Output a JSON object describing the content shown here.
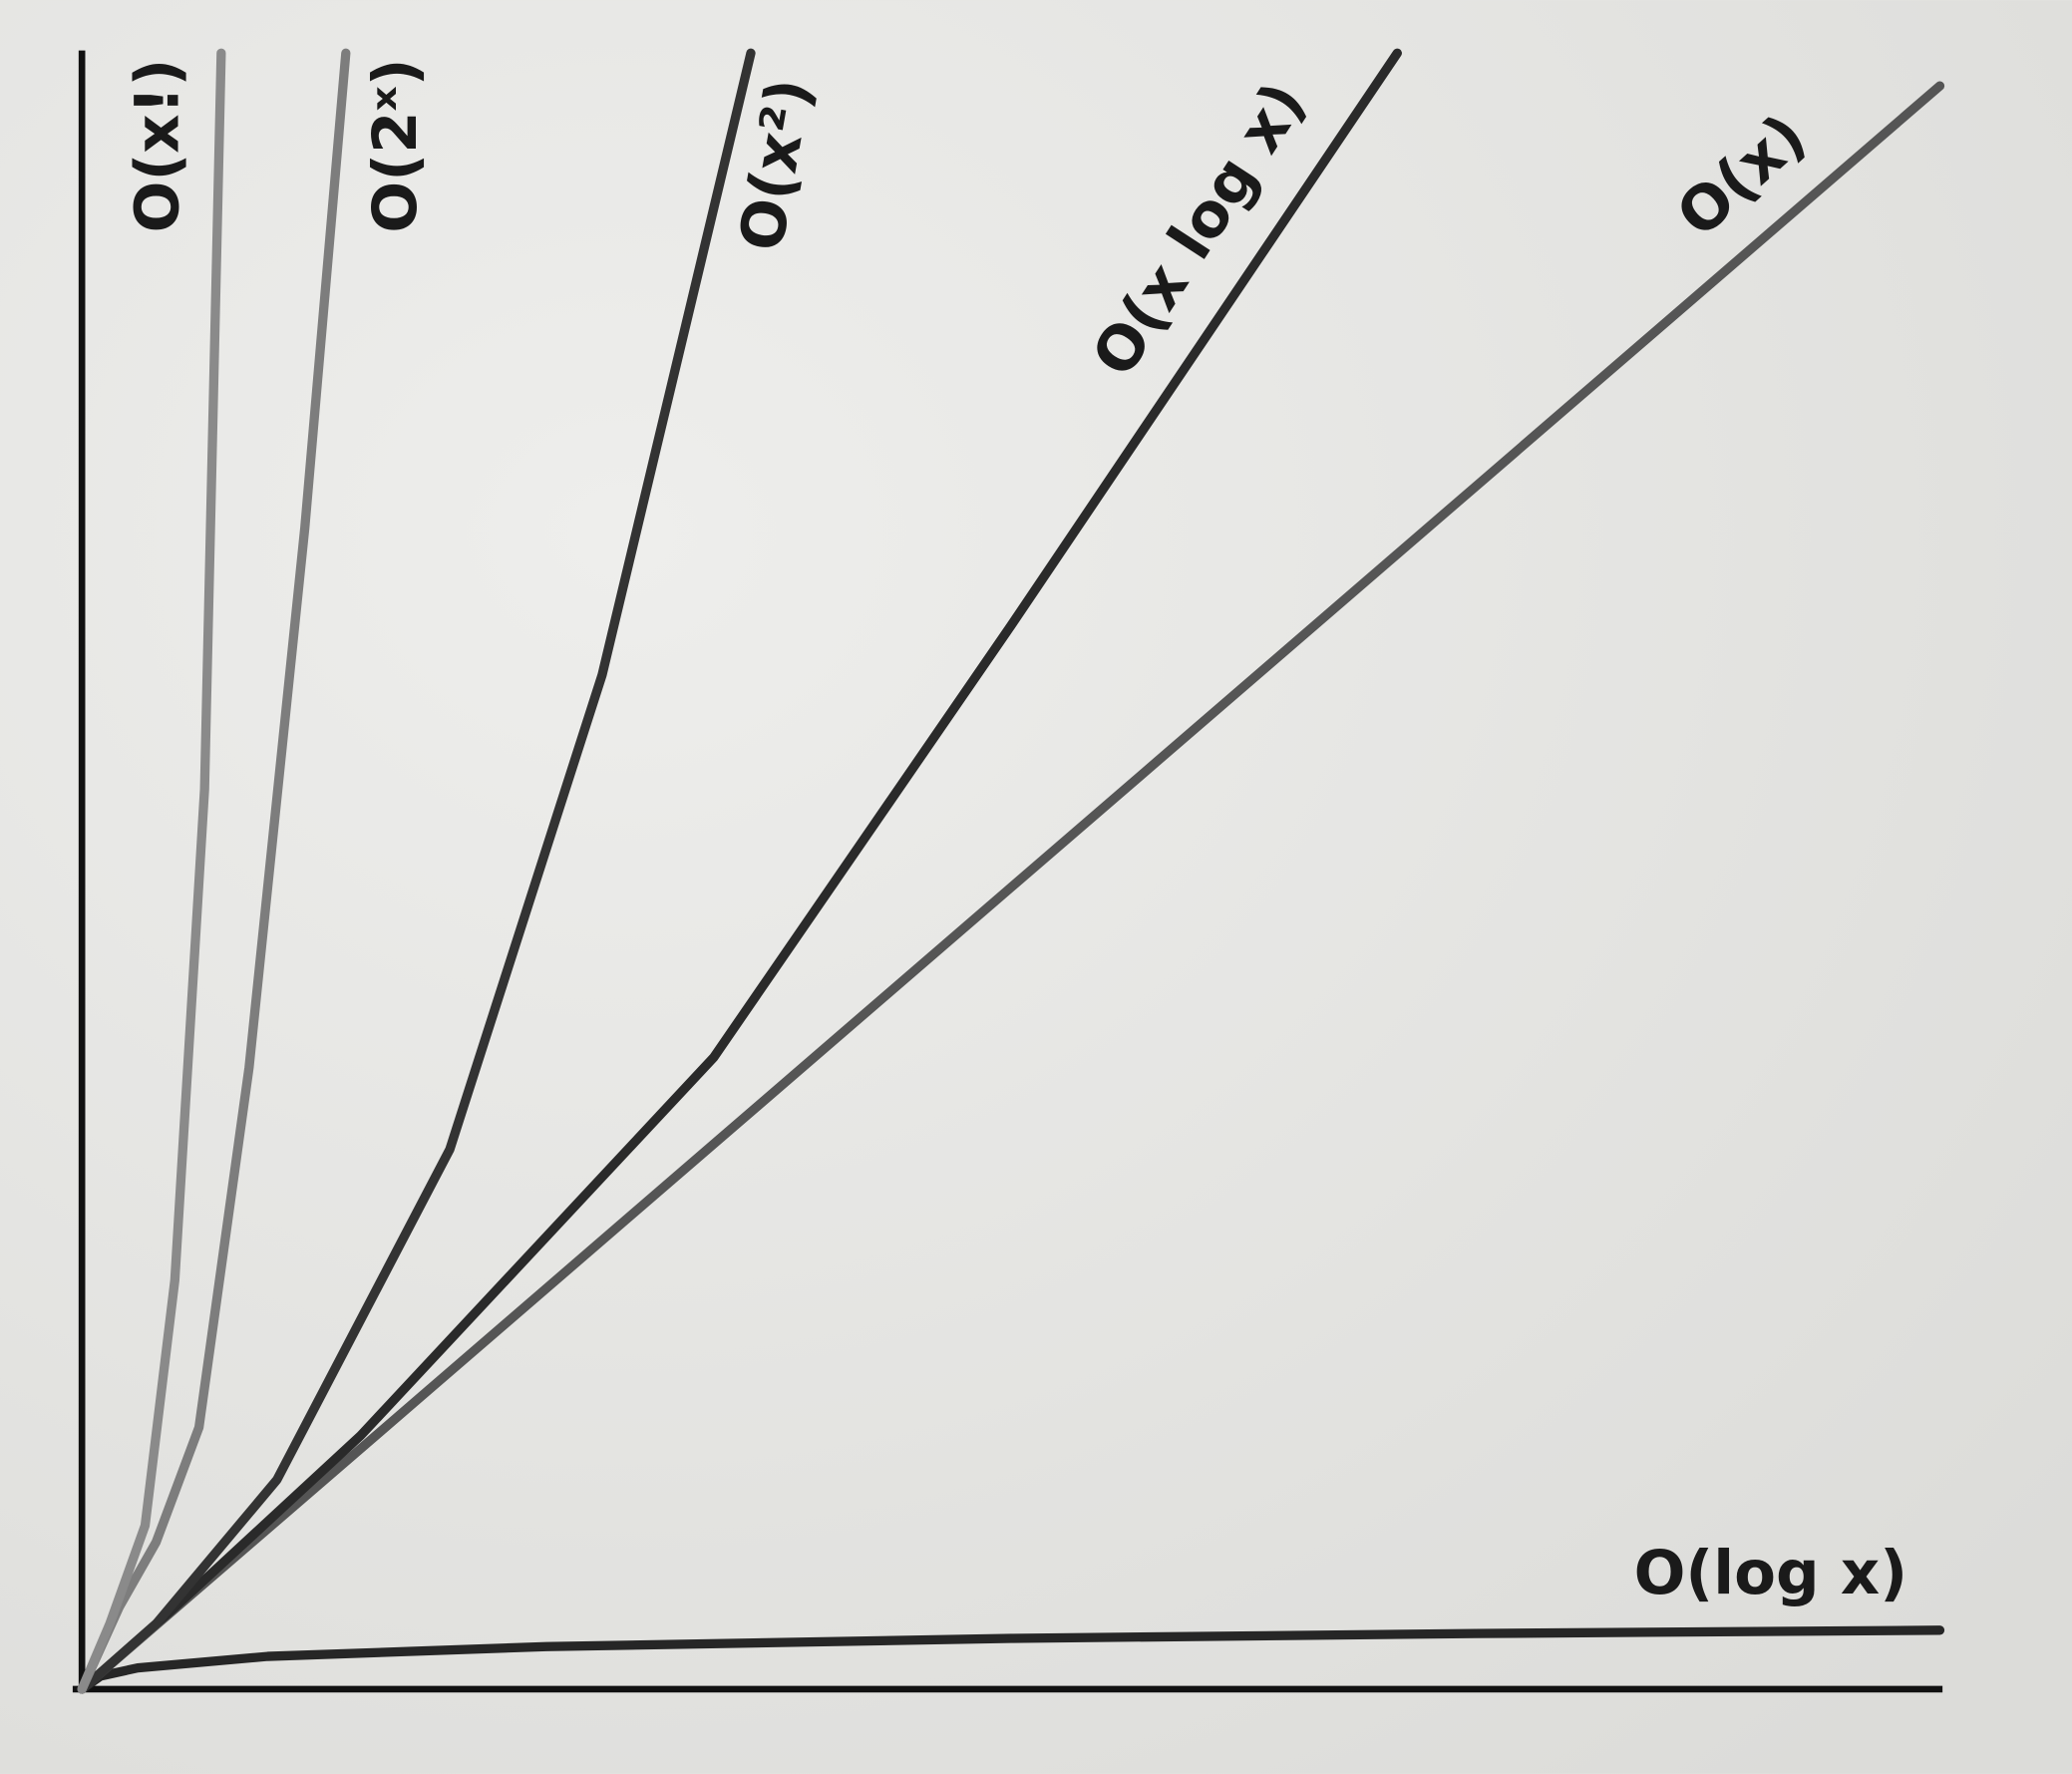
{
  "chart_data": {
    "type": "line",
    "xlim": [
      0,
      100
    ],
    "ylim": [
      0,
      100
    ],
    "series": [
      {
        "name": "O(log x)",
        "color": "#262626",
        "x": [
          0,
          1,
          3,
          10,
          25,
          50,
          75,
          100
        ],
        "values": [
          0,
          0.8,
          1.3,
          2,
          2.6,
          3.1,
          3.4,
          3.6
        ]
      },
      {
        "name": "O(x)",
        "color": "#555555",
        "x": [
          0,
          25,
          50,
          75,
          100
        ],
        "values": [
          0,
          24.5,
          49,
          73.5,
          98
        ]
      },
      {
        "name": "O(x log x)",
        "color": "#2a2a2a",
        "x": [
          0,
          5,
          15,
          34,
          50,
          70.8
        ],
        "values": [
          0,
          5,
          15.5,
          38.6,
          65,
          100
        ]
      },
      {
        "name": "O(x²)",
        "color": "#333333",
        "x": [
          0,
          4,
          10.5,
          19.8,
          28,
          36
        ],
        "values": [
          0,
          4,
          12.8,
          33,
          62,
          100
        ]
      },
      {
        "name": "O(2ˣ)",
        "color": "#7d7d7d",
        "x": [
          0,
          2,
          4,
          6.3,
          9,
          12,
          14.2
        ],
        "values": [
          0,
          5,
          9,
          16,
          38,
          71,
          100
        ]
      },
      {
        "name": "O(x!)",
        "color": "#8a8a8a",
        "x": [
          0,
          1.5,
          3.4,
          5,
          6.6,
          7.5
        ],
        "values": [
          0,
          4,
          10,
          25,
          55,
          100
        ]
      }
    ]
  }
}
